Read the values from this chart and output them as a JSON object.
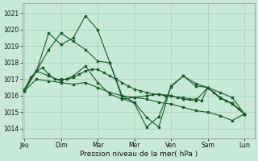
{
  "xlabel": "Pression niveau de la mer( hPa )",
  "background_color": "#c8e8d8",
  "grid_color": "#b0ccbc",
  "line_color": "#1a5c2a",
  "ylim": [
    1013.4,
    1021.6
  ],
  "yticks": [
    1014,
    1015,
    1016,
    1017,
    1018,
    1019,
    1020,
    1021
  ],
  "day_labels": [
    "Jeu",
    "Dim",
    "Mar",
    "Mer",
    "Ven",
    "Sam",
    "Lun"
  ],
  "day_positions": [
    0,
    18,
    36,
    54,
    72,
    90,
    108
  ],
  "xlim": [
    -1,
    113
  ],
  "lines": [
    {
      "x": [
        0,
        3,
        6,
        9,
        12,
        15,
        18,
        21,
        24,
        27,
        30,
        33,
        36,
        39,
        42,
        45,
        48,
        51,
        54,
        57,
        60,
        63,
        66,
        69,
        72,
        75,
        78,
        81,
        84,
        87,
        90,
        93,
        96,
        99,
        102,
        105,
        108
      ],
      "y": [
        1016.3,
        1017.1,
        1017.5,
        1017.7,
        1017.3,
        1017.0,
        1017.0,
        1017.0,
        1017.1,
        1017.3,
        1017.5,
        1017.6,
        1017.6,
        1017.4,
        1017.2,
        1017.0,
        1016.8,
        1016.6,
        1016.4,
        1016.3,
        1016.2,
        1016.1,
        1016.1,
        1016.0,
        1016.0,
        1015.9,
        1015.9,
        1015.8,
        1015.8,
        1015.7,
        1016.5,
        1016.2,
        1015.9,
        1015.7,
        1015.5,
        1015.2,
        1014.9
      ]
    },
    {
      "x": [
        0,
        6,
        12,
        18,
        24,
        30,
        36,
        42,
        48,
        54,
        60,
        66,
        72,
        78,
        84,
        90,
        96,
        102,
        108
      ],
      "y": [
        1016.3,
        1017.5,
        1018.8,
        1019.8,
        1019.3,
        1018.8,
        1018.1,
        1018.0,
        1016.0,
        1015.6,
        1014.7,
        1014.1,
        1016.6,
        1017.2,
        1016.6,
        1016.5,
        1016.2,
        1015.9,
        1014.9
      ]
    },
    {
      "x": [
        0,
        6,
        12,
        18,
        24,
        30,
        36,
        42,
        48,
        54,
        60,
        66,
        72,
        78,
        84,
        90,
        96,
        102,
        108
      ],
      "y": [
        1016.4,
        1017.5,
        1019.8,
        1019.1,
        1019.5,
        1020.85,
        1020.0,
        1018.0,
        1015.85,
        1015.55,
        1014.1,
        1014.75,
        1016.55,
        1017.2,
        1016.75,
        1016.5,
        1015.85,
        1015.55,
        1014.9
      ]
    },
    {
      "x": [
        0,
        6,
        12,
        18,
        24,
        30,
        36,
        42,
        48,
        54,
        60,
        66,
        72,
        78,
        84,
        90,
        96,
        102,
        108
      ],
      "y": [
        1016.3,
        1017.5,
        1017.2,
        1016.9,
        1017.2,
        1017.8,
        1016.8,
        1016.1,
        1015.8,
        1015.9,
        1016.0,
        1016.1,
        1016.0,
        1015.8,
        1015.7,
        1016.5,
        1015.9,
        1015.5,
        1014.9
      ]
    },
    {
      "x": [
        0,
        6,
        12,
        18,
        24,
        30,
        36,
        42,
        48,
        54,
        60,
        66,
        72,
        78,
        84,
        90,
        96,
        102,
        108
      ],
      "y": [
        1016.3,
        1017.0,
        1016.9,
        1016.8,
        1016.7,
        1016.8,
        1016.5,
        1016.2,
        1016.0,
        1015.9,
        1015.8,
        1015.6,
        1015.5,
        1015.3,
        1015.1,
        1015.0,
        1014.8,
        1014.5,
        1014.9
      ]
    }
  ]
}
